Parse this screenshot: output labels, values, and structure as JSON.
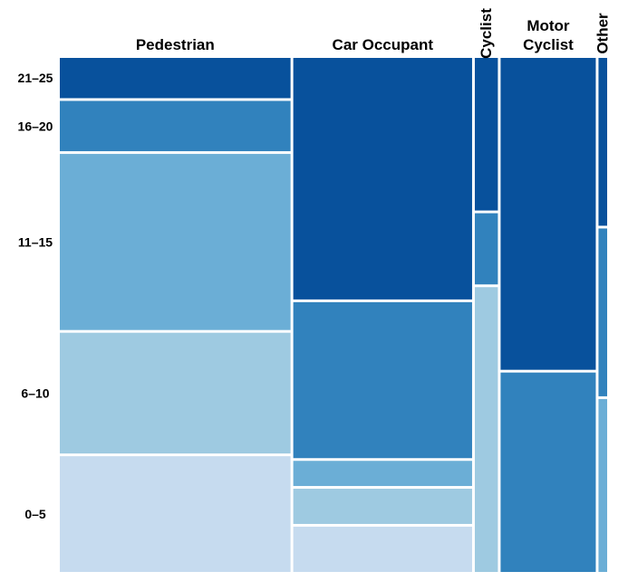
{
  "chart_data": {
    "type": "mosaic",
    "title": "",
    "columns": [
      {
        "label": [
          "Pedestrian"
        ],
        "orientation": "horizontal",
        "width": 0.4,
        "segments": [
          {
            "category": "0–5",
            "share": 0.23,
            "color": "#c6dbef"
          },
          {
            "category": "6–10",
            "share": 0.24,
            "color": "#9ecae1"
          },
          {
            "category": "11–15",
            "share": 0.35,
            "color": "#6baed6"
          },
          {
            "category": "16–20",
            "share": 0.1,
            "color": "#3182bd"
          },
          {
            "category": "21–25",
            "share": 0.08,
            "color": "#08519c"
          }
        ]
      },
      {
        "label": [
          "Car Occupant"
        ],
        "orientation": "horizontal",
        "width": 0.31,
        "segments": [
          {
            "category": "0–5",
            "share": 0.09,
            "color": "#c6dbef"
          },
          {
            "category": "6–10",
            "share": 0.07,
            "color": "#9ecae1"
          },
          {
            "category": "11–15",
            "share": 0.05,
            "color": "#6baed6"
          },
          {
            "category": "16–20",
            "share": 0.31,
            "color": "#3182bd"
          },
          {
            "category": "21–25",
            "share": 0.48,
            "color": "#08519c"
          }
        ]
      },
      {
        "label": [
          "Cyclist"
        ],
        "orientation": "vertical",
        "width": 0.04,
        "segments": [
          {
            "category": "0–5",
            "share": 0.0,
            "color": "#c6dbef"
          },
          {
            "category": "6–10",
            "share": 0.56,
            "color": "#9ecae1"
          },
          {
            "category": "11–15",
            "share": 0.0,
            "color": "#6baed6"
          },
          {
            "category": "16–20",
            "share": 0.14,
            "color": "#3182bd"
          },
          {
            "category": "21–25",
            "share": 0.3,
            "color": "#08519c"
          }
        ]
      },
      {
        "label": [
          "Motor",
          "Cyclist"
        ],
        "orientation": "horizontal",
        "width": 0.165,
        "segments": [
          {
            "category": "0–5",
            "share": 0.0,
            "color": "#c6dbef"
          },
          {
            "category": "6–10",
            "share": 0.0,
            "color": "#9ecae1"
          },
          {
            "category": "11–15",
            "share": 0.0,
            "color": "#6baed6"
          },
          {
            "category": "16–20",
            "share": 0.39,
            "color": "#3182bd"
          },
          {
            "category": "21–25",
            "share": 0.61,
            "color": "#08519c"
          }
        ]
      },
      {
        "label": [
          "Other"
        ],
        "orientation": "vertical",
        "width": 0.015,
        "segments": [
          {
            "category": "0–5",
            "share": 0.0,
            "color": "#c6dbef"
          },
          {
            "category": "6–10",
            "share": 0.0,
            "color": "#9ecae1"
          },
          {
            "category": "11–15",
            "share": 0.34,
            "color": "#6baed6"
          },
          {
            "category": "16–20",
            "share": 0.33,
            "color": "#3182bd"
          },
          {
            "category": "21–25",
            "share": 0.33,
            "color": "#08519c"
          }
        ]
      }
    ],
    "row_labels": [
      "21–25",
      "16–20",
      "11–15",
      "6–10",
      "0–5"
    ],
    "label_reference_column": "Pedestrian"
  }
}
